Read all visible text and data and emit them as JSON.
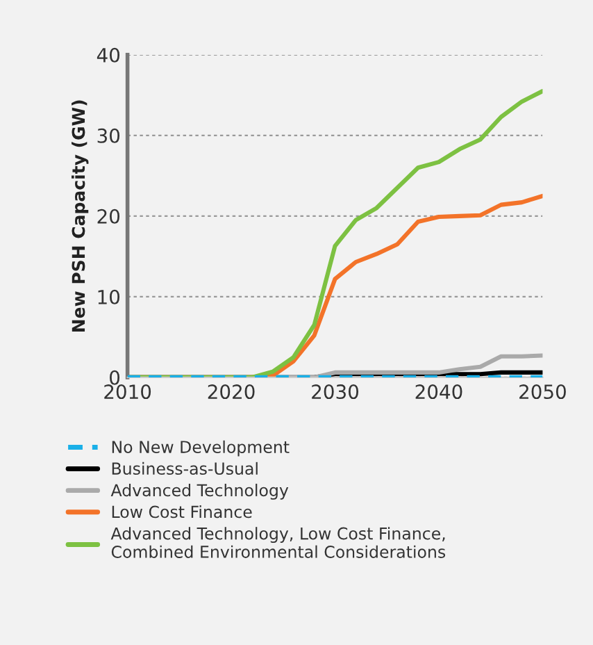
{
  "chart_data": {
    "type": "line",
    "ylabel": "New PSH Capacity (GW)",
    "xlim": [
      2010,
      2050
    ],
    "xticks": [
      2010,
      2020,
      2030,
      2040,
      2050
    ],
    "ylim": [
      0,
      40
    ],
    "yticks": [
      0,
      10,
      20,
      30,
      40
    ],
    "grid": "y",
    "legend": "bottom",
    "series": [
      {
        "name": "No New Development",
        "color": "#1ab0e8",
        "line_style": "dashed",
        "x": [
          2010,
          2020,
          2030,
          2040,
          2050
        ],
        "values": [
          0,
          0,
          0,
          0,
          0
        ]
      },
      {
        "name": "Business-as-Usual",
        "color": "#000000",
        "x": [
          2010,
          2028,
          2030,
          2044,
          2046,
          2050
        ],
        "values": [
          0,
          0,
          0.4,
          0.4,
          0.6,
          0.6
        ]
      },
      {
        "name": "Advanced Technology",
        "color": "#aaaaaa",
        "x": [
          2010,
          2028,
          2030,
          2040,
          2042,
          2044,
          2046,
          2048,
          2050
        ],
        "values": [
          0,
          0,
          0.6,
          0.6,
          1,
          1.3,
          2.6,
          2.6,
          2.7
        ]
      },
      {
        "name": "Low Cost Finance",
        "color": "#f37329",
        "x": [
          2010,
          2022,
          2024,
          2026,
          2028,
          2030,
          2032,
          2034,
          2036,
          2038,
          2040,
          2042,
          2044,
          2046,
          2048,
          2050
        ],
        "values": [
          0,
          0,
          0.2,
          2,
          5.2,
          12.2,
          14.3,
          15.3,
          16.5,
          19.3,
          19.9,
          20,
          20.1,
          21.4,
          21.7,
          22.5
        ]
      },
      {
        "name": "Advanced Technology, Low Cost Finance,\nCombined Environmental Considerations",
        "color": "#7dc142",
        "x": [
          2010,
          2022,
          2024,
          2026,
          2028,
          2030,
          2032,
          2034,
          2036,
          2038,
          2040,
          2042,
          2044,
          2046,
          2048,
          2050
        ],
        "values": [
          0,
          0,
          0.7,
          2.5,
          6.5,
          16.3,
          19.5,
          21,
          23.5,
          26,
          26.7,
          28.3,
          29.5,
          32.3,
          34.2,
          35.5
        ]
      }
    ]
  }
}
